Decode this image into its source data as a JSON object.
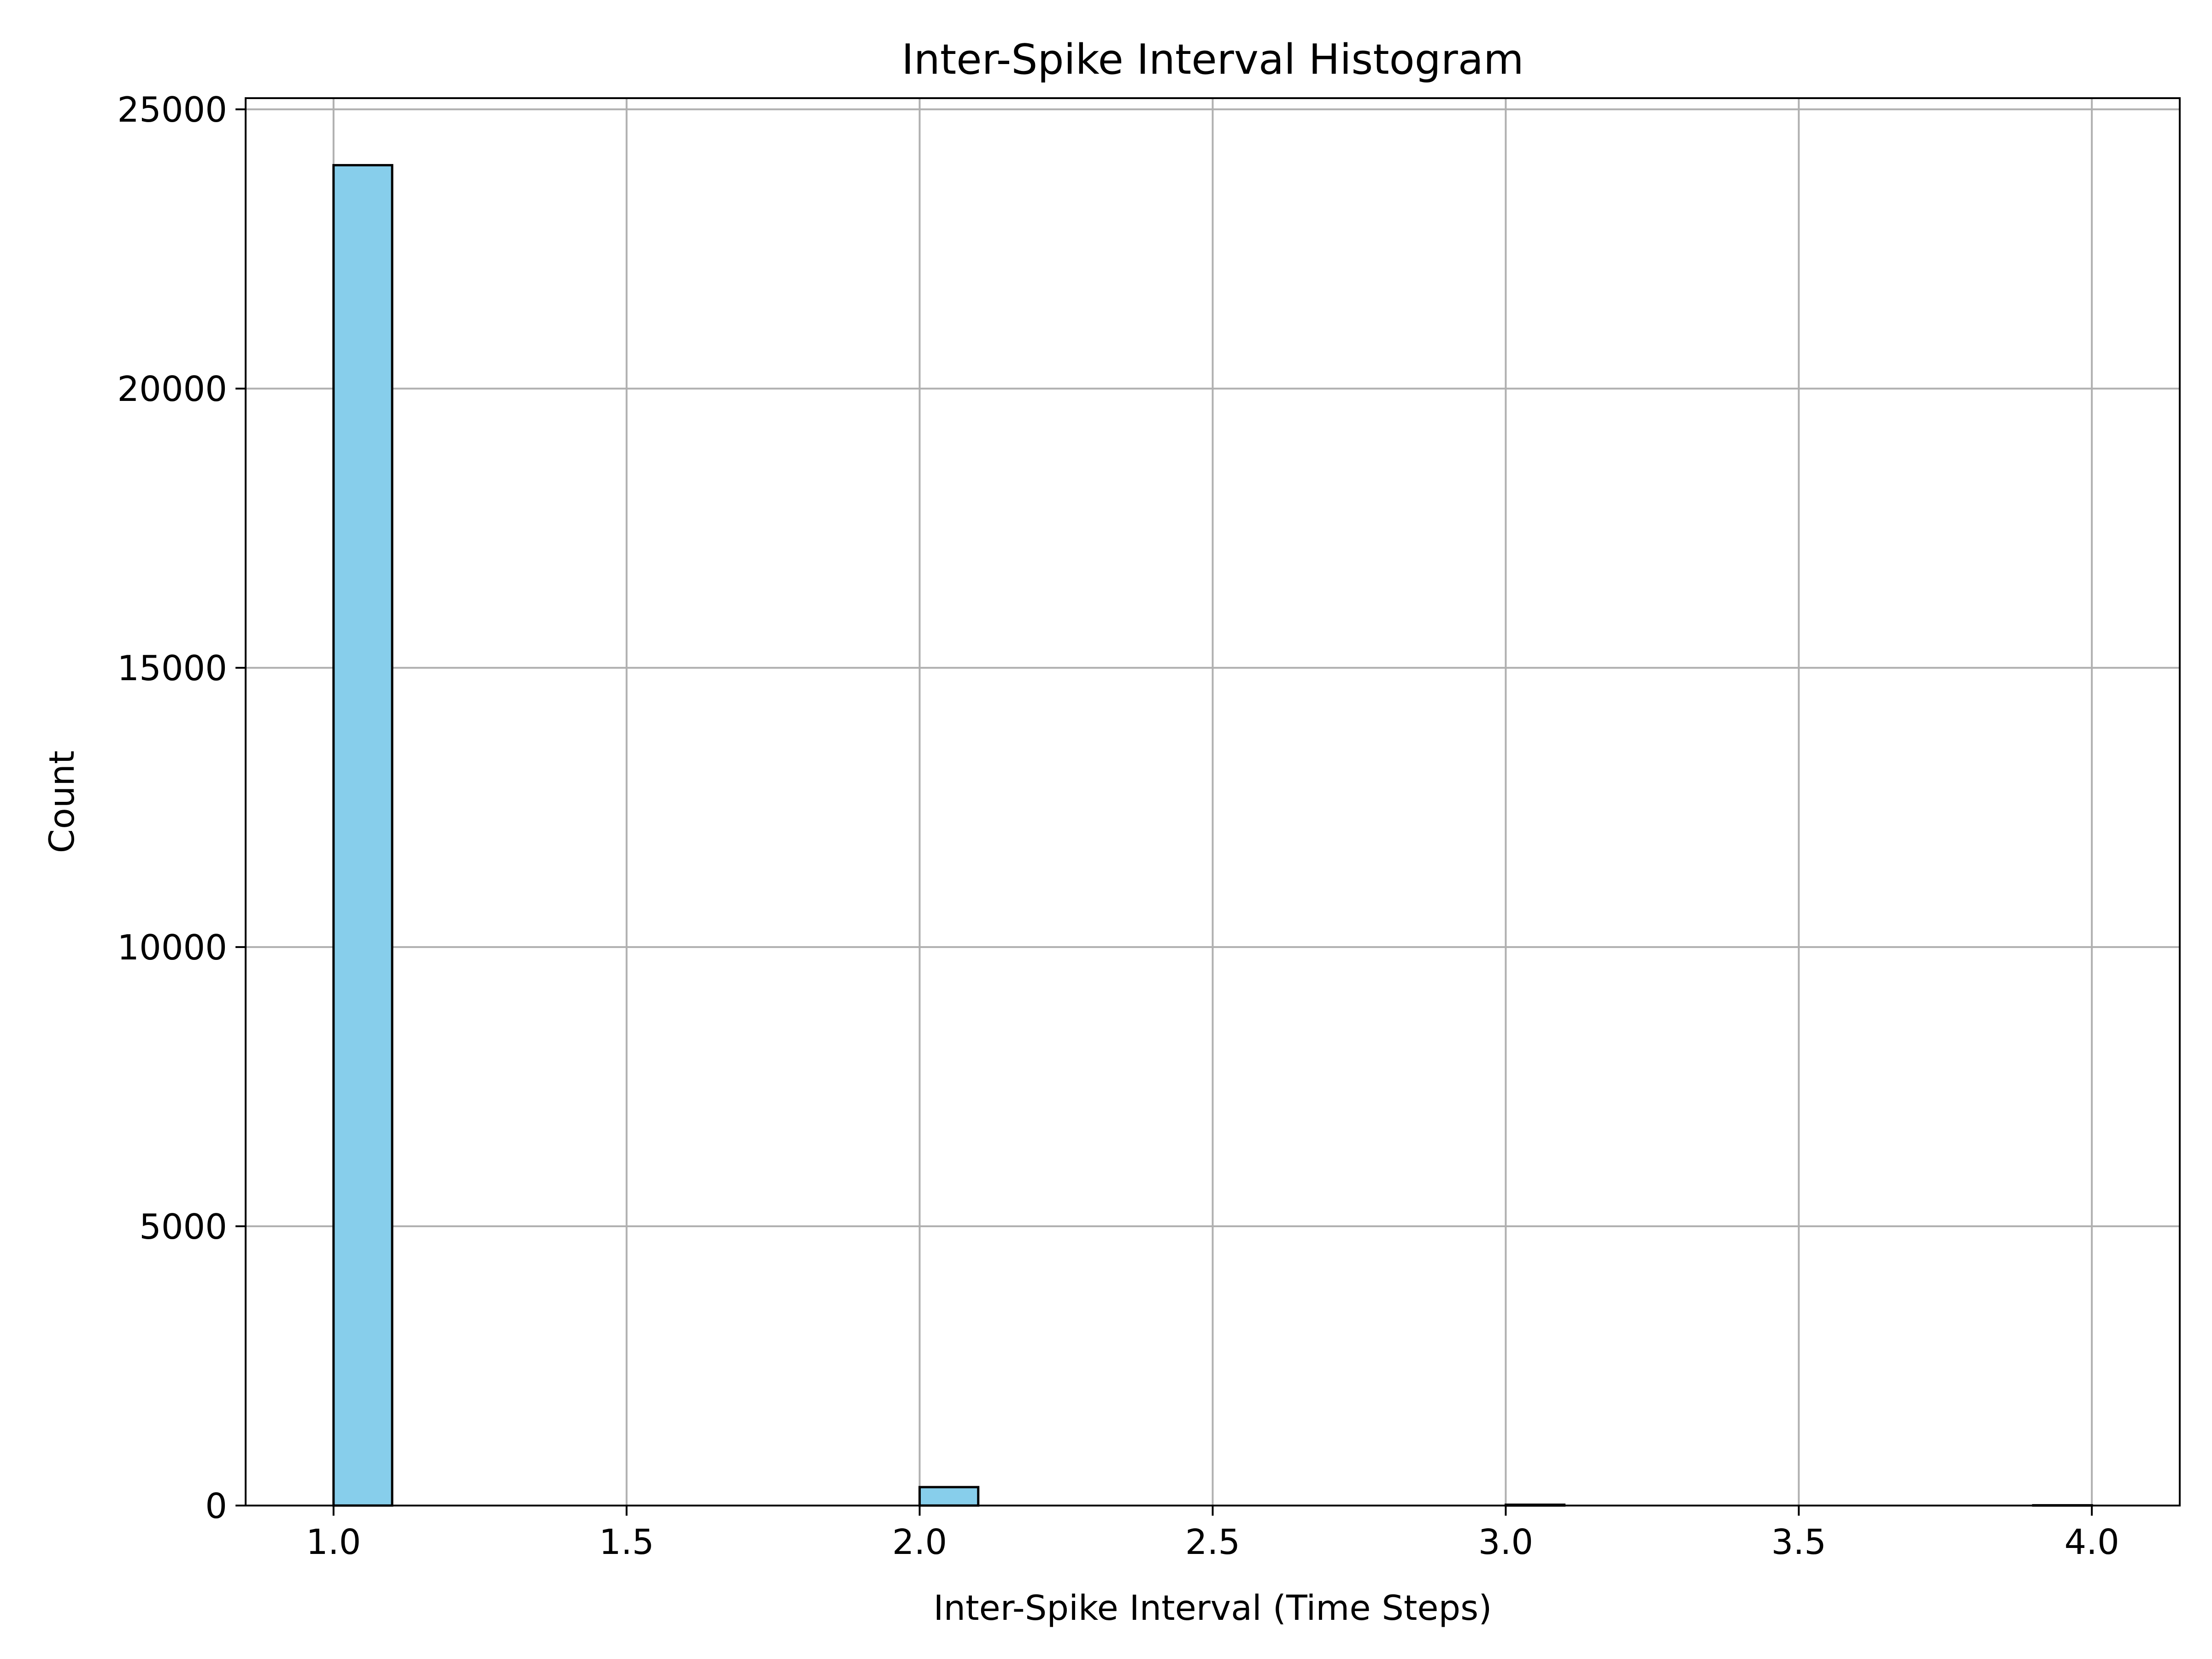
{
  "chart_data": {
    "type": "bar",
    "title": "Inter-Spike Interval Histogram",
    "xlabel": "Inter-Spike Interval (Time Steps)",
    "ylabel": "Count",
    "xlim": [
      0.85,
      4.15
    ],
    "ylim": [
      0,
      25200
    ],
    "xticks": [
      1.0,
      1.5,
      2.0,
      2.5,
      3.0,
      3.5,
      4.0
    ],
    "xtick_labels": [
      "1.0",
      "1.5",
      "2.0",
      "2.5",
      "3.0",
      "3.5",
      "4.0"
    ],
    "yticks": [
      0,
      5000,
      10000,
      15000,
      20000,
      25000
    ],
    "ytick_labels": [
      "0",
      "5000",
      "10000",
      "15000",
      "20000",
      "25000"
    ],
    "grid": true,
    "bin_width": 0.1,
    "bins": [
      {
        "x": 1.0,
        "count": 24000
      },
      {
        "x": 2.0,
        "count": 330
      },
      {
        "x": 3.0,
        "count": 15
      },
      {
        "x": 3.9,
        "count": 5
      }
    ],
    "colors": {
      "bar_fill": "#87ceeb",
      "bar_edge": "#000000",
      "grid": "#b0b0b0",
      "axes": "#000000"
    }
  }
}
